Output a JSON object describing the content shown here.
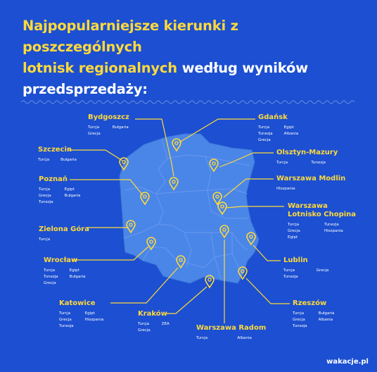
{
  "headline": {
    "line1": "Najpopularniejsze kierunki z poszczególnych",
    "line2_highlight": "lotnisk regionalnych",
    "line2_rest": "według wyników",
    "line3": "przedsprzedaży:"
  },
  "colors": {
    "background": "#1c4fd1",
    "map": "#4a86e8",
    "accent": "#ffd93b",
    "text": "#ffffff"
  },
  "airports": [
    {
      "name": "Bydgoszcz",
      "destinations": [
        "Turcja",
        "Bułgaria",
        "Grecja"
      ]
    },
    {
      "name": "Gdańsk",
      "destinations": [
        "Turcja",
        "Egipt",
        "Tunezja",
        "Albania",
        "Grecja"
      ]
    },
    {
      "name": "Szczecin",
      "destinations": [
        "Turcja",
        "Bułgaria"
      ]
    },
    {
      "name": "Olsztyn-Mazury",
      "destinations": [
        "Turcja",
        "Tunezja"
      ]
    },
    {
      "name": "Poznań",
      "destinations": [
        "Turcja",
        "Egipt",
        "Grecja",
        "Bułgaria",
        "Tunezja"
      ]
    },
    {
      "name": "Warszawa Modlin",
      "destinations": [
        "Hiszpania"
      ]
    },
    {
      "name": "Warszawa\nLotnisko Chopina",
      "destinations": [
        "Turcja",
        "Tunezja",
        "Grecja",
        "Hiszpania",
        "Egipt"
      ]
    },
    {
      "name": "Zielona Góra",
      "destinations": [
        "Turcja"
      ]
    },
    {
      "name": "Wrocław",
      "destinations": [
        "Turcja",
        "Egipt",
        "Tunezja",
        "Bułgaria",
        "Grecja"
      ]
    },
    {
      "name": "Lublin",
      "destinations": [
        "Turcja",
        "Grecja",
        "Tunezja"
      ]
    },
    {
      "name": "Katowice",
      "destinations": [
        "Turcja",
        "Egipt",
        "Grecja",
        "Hiszpania",
        "Tunezja"
      ]
    },
    {
      "name": "Rzeszów",
      "destinations": [
        "Turcja",
        "Bułgaria",
        "Grecja",
        "Albania",
        "Tunezja"
      ]
    },
    {
      "name": "Kraków",
      "destinations": [
        "Turcja",
        "ZEA",
        "Grecja"
      ]
    },
    {
      "name": "Warszawa Radom",
      "destinations": [
        "Turcja",
        "Albania"
      ]
    }
  ],
  "logo": "wakacje.pl"
}
